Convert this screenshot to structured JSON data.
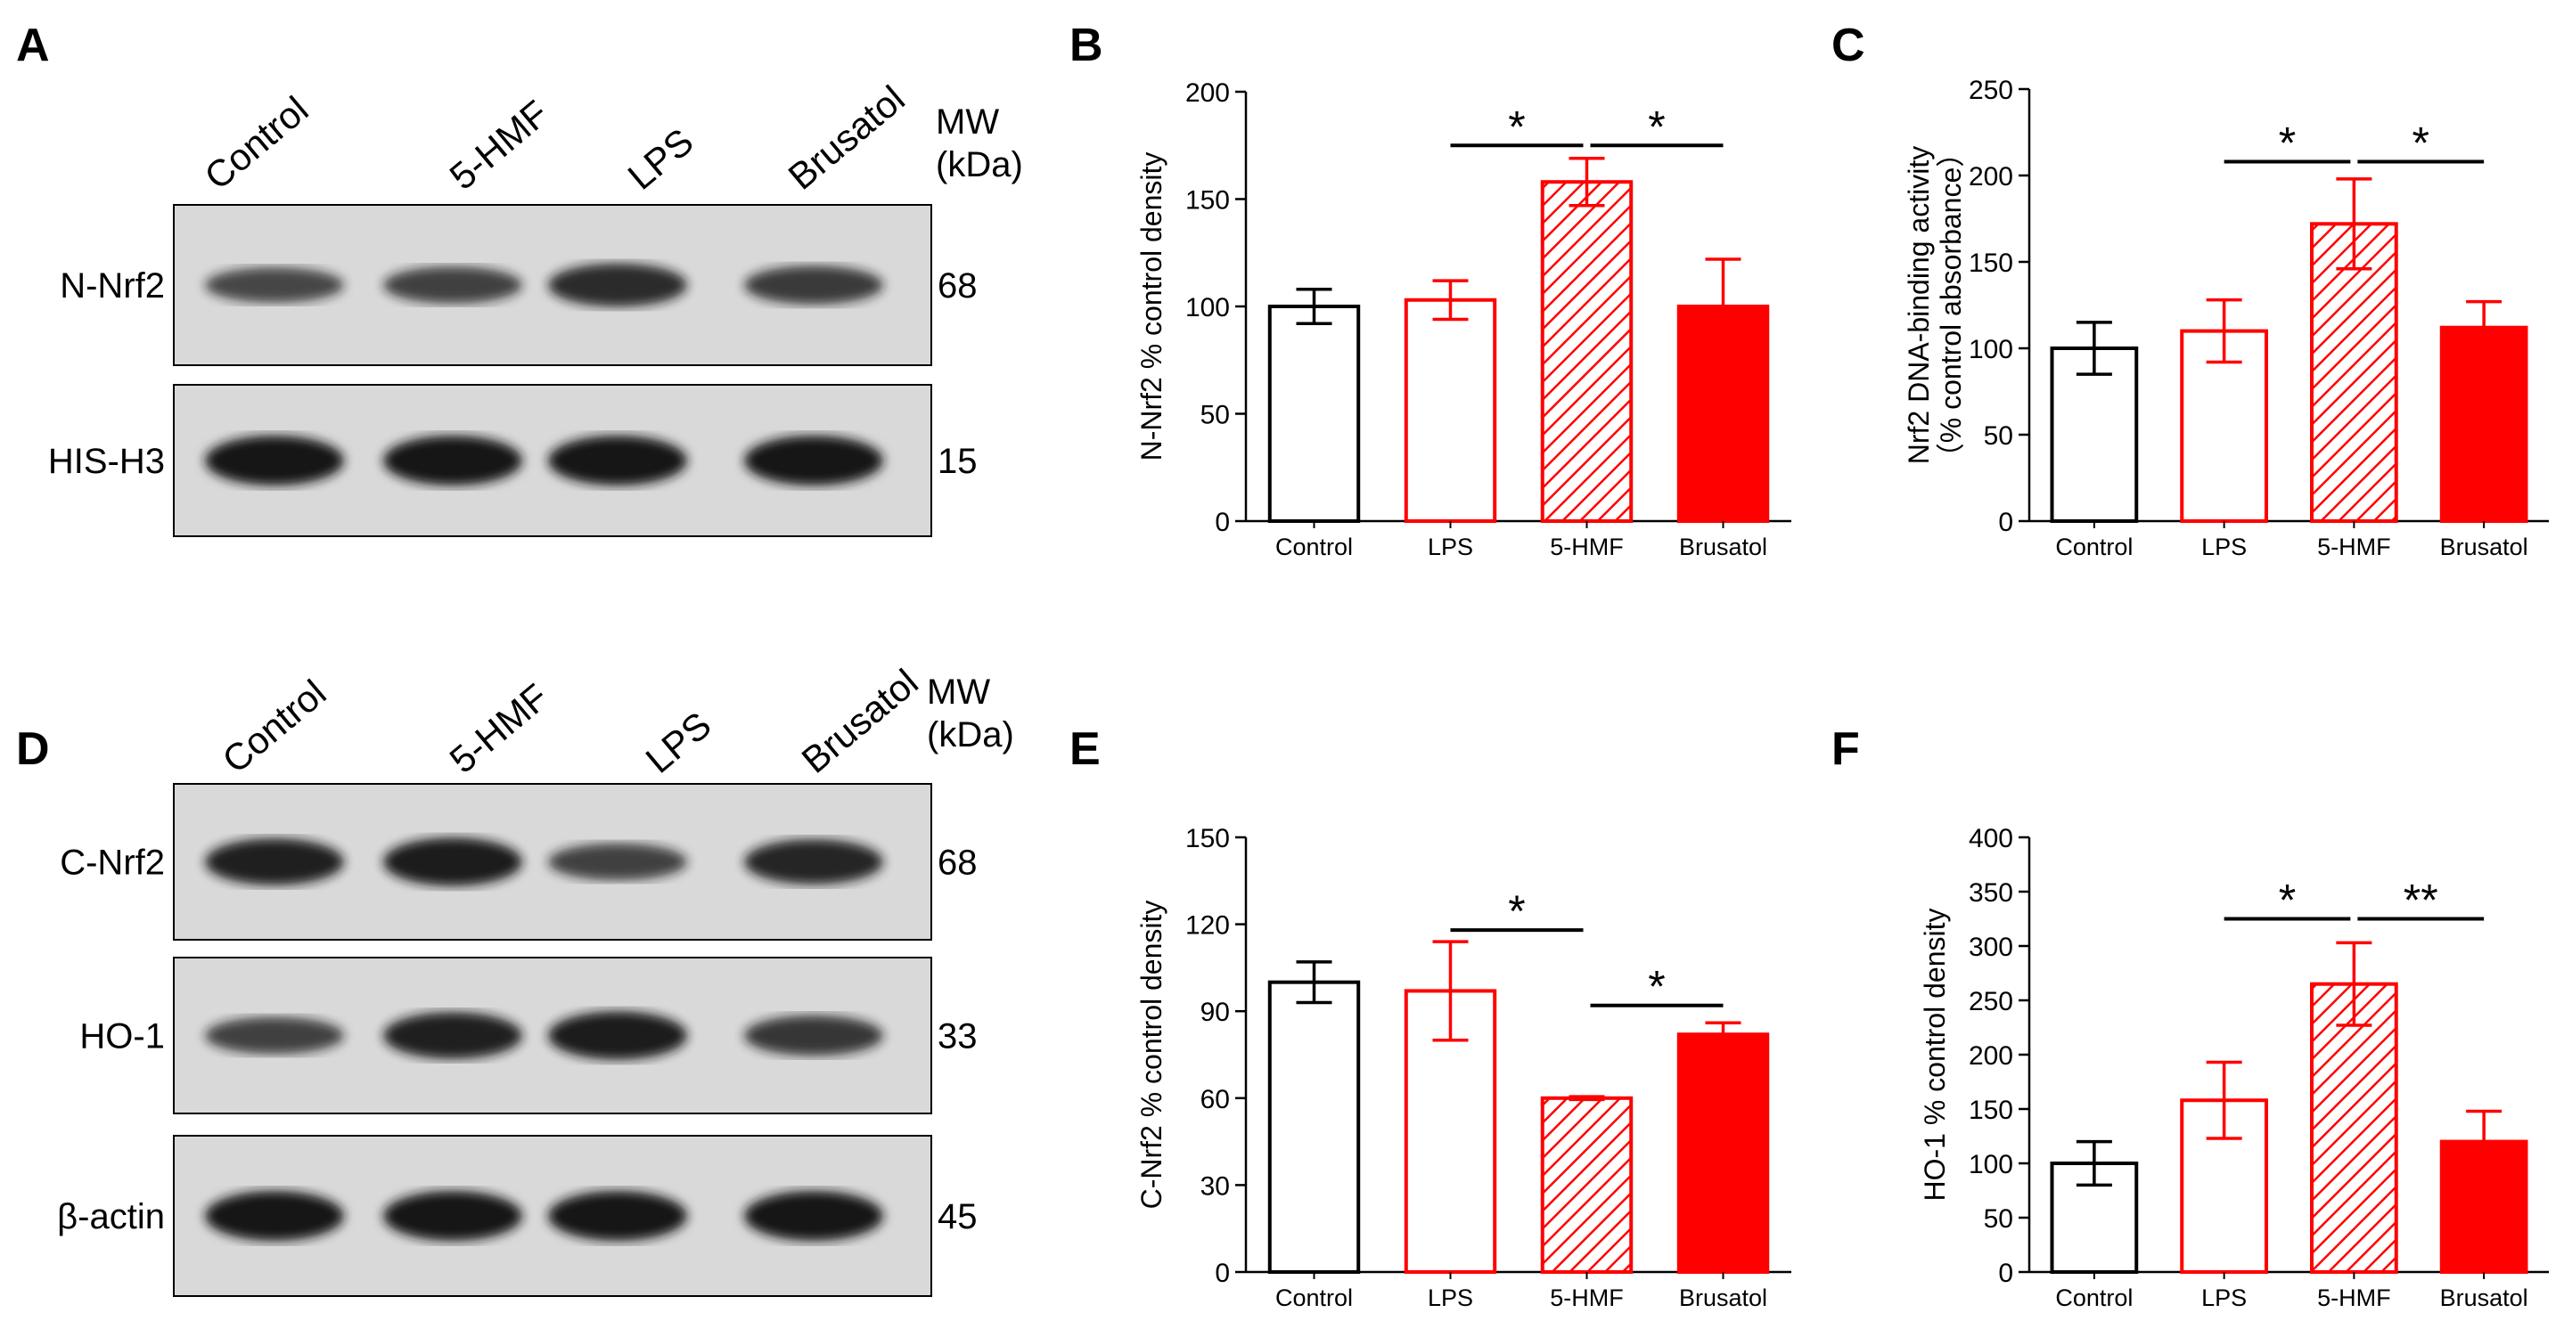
{
  "colors": {
    "control": "#000000",
    "treatment": "#ff0000",
    "blot_bg": "#d9d9d9",
    "band": "#141414"
  },
  "blots": [
    {
      "letter": "A",
      "lanes": [
        "Control",
        "5-HMF",
        "LPS",
        "Brusatol"
      ],
      "mw_header": [
        "MW",
        "(kDa)"
      ],
      "rows": [
        {
          "label": "N-Nrf2",
          "mw": "68",
          "intensity": [
            0.55,
            0.6,
            0.8,
            0.65
          ]
        },
        {
          "label": "HIS-H3",
          "mw": "15",
          "intensity": [
            1.0,
            1.0,
            1.0,
            1.0
          ]
        }
      ]
    },
    {
      "letter": "D",
      "lanes": [
        "Control",
        "5-HMF",
        "LPS",
        "Brusatol"
      ],
      "mw_header": [
        "MW",
        "(kDa)"
      ],
      "rows": [
        {
          "label": "C-Nrf2",
          "mw": "68",
          "intensity": [
            0.9,
            0.95,
            0.6,
            0.85
          ]
        },
        {
          "label": "HO-1",
          "mw": "33",
          "intensity": [
            0.6,
            0.9,
            0.95,
            0.7
          ]
        },
        {
          "label": "β-actin",
          "mw": "45",
          "intensity": [
            1.0,
            1.0,
            1.0,
            1.0
          ]
        }
      ]
    }
  ],
  "chart_data": [
    {
      "panel": "B",
      "type": "bar",
      "categories": [
        "Control",
        "LPS",
        "5-HMF",
        "Brusatol"
      ],
      "values": [
        100,
        103,
        158,
        100
      ],
      "errors": [
        8,
        9,
        11,
        22
      ],
      "ylabel_lines": [
        "N-Nrf2 % control density"
      ],
      "ylim": [
        0,
        200
      ],
      "yticks": [
        0,
        50,
        100,
        150,
        200
      ],
      "significance": [
        {
          "from": 1,
          "to": 2,
          "label": "*"
        },
        {
          "from": 2,
          "to": 3,
          "label": "*"
        }
      ],
      "sig_y": 175
    },
    {
      "panel": "C",
      "type": "bar",
      "categories": [
        "Control",
        "LPS",
        "5-HMF",
        "Brusatol"
      ],
      "values": [
        100,
        110,
        172,
        112
      ],
      "errors": [
        15,
        18,
        26,
        15
      ],
      "ylabel_lines": [
        "Nrf2 DNA-binding activity",
        "（% control absorbance）"
      ],
      "ylim": [
        0,
        250
      ],
      "yticks": [
        0,
        50,
        100,
        150,
        200,
        250
      ],
      "significance": [
        {
          "from": 1,
          "to": 2,
          "label": "*"
        },
        {
          "from": 2,
          "to": 3,
          "label": "*"
        }
      ],
      "sig_y": 208
    },
    {
      "panel": "E",
      "type": "bar",
      "categories": [
        "Control",
        "LPS",
        "5-HMF",
        "Brusatol"
      ],
      "values": [
        100,
        97,
        60,
        82
      ],
      "errors": [
        7,
        17,
        0.5,
        4
      ],
      "ylabel_lines": [
        "C-Nrf2 % control density"
      ],
      "ylim": [
        0,
        150
      ],
      "yticks": [
        0,
        30,
        60,
        90,
        120,
        150
      ],
      "significance": [
        {
          "from": 1,
          "to": 2,
          "label": "*"
        },
        {
          "from": 2,
          "to": 3,
          "label": "*"
        }
      ],
      "sig_y_list": [
        118,
        92
      ]
    },
    {
      "panel": "F",
      "type": "bar",
      "categories": [
        "Control",
        "LPS",
        "5-HMF",
        "Brusatol"
      ],
      "values": [
        100,
        158,
        265,
        120
      ],
      "errors": [
        20,
        35,
        38,
        28
      ],
      "ylabel_lines": [
        "HO-1 % control density"
      ],
      "ylim": [
        0,
        400
      ],
      "yticks": [
        0,
        50,
        100,
        150,
        200,
        250,
        300,
        350,
        400
      ],
      "significance": [
        {
          "from": 1,
          "to": 2,
          "label": "*"
        },
        {
          "from": 2,
          "to": 3,
          "label": "**"
        }
      ],
      "sig_y": 325
    }
  ]
}
